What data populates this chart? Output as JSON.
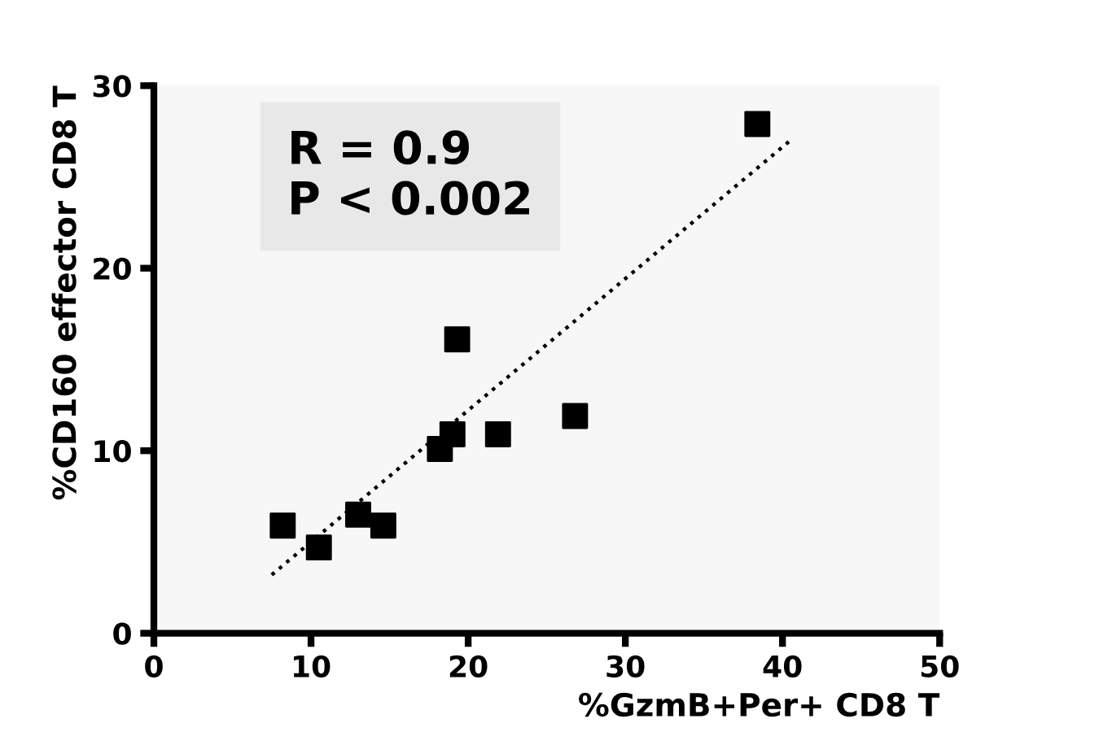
{
  "chart_data": {
    "type": "scatter",
    "xlabel": "%GzmB+Per+ CD8 T",
    "ylabel": "%CD160 effector CD8 T",
    "xlim": [
      0,
      50
    ],
    "ylim": [
      0,
      30
    ],
    "xticks": [
      0,
      10,
      20,
      30,
      40,
      50
    ],
    "yticks": [
      0,
      10,
      20,
      30
    ],
    "grid": false,
    "legend": false,
    "series": [
      {
        "color": "#000000",
        "marker": "square",
        "x": [
          8.2,
          10.5,
          13.0,
          14.6,
          18.2,
          19.0,
          19.3,
          21.9,
          26.8,
          38.4
        ],
        "values": [
          5.9,
          4.7,
          6.5,
          5.9,
          10.1,
          10.9,
          16.1,
          10.9,
          11.9,
          27.9
        ]
      },
      {
        "type": "line",
        "color": "#000000",
        "line_style": "dotted",
        "marker": "none",
        "x": [
          7.5,
          40.5
        ],
        "values": [
          3.2,
          27.0
        ]
      }
    ],
    "annotations": [
      "R = 0.9\nP < 0.002"
    ]
  }
}
